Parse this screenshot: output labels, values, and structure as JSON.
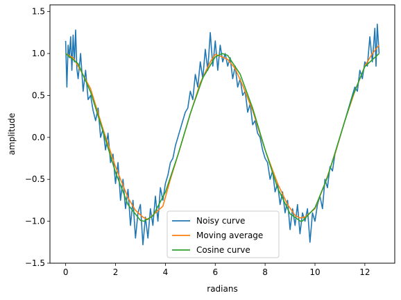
{
  "chart_data": {
    "type": "line",
    "title": "",
    "xlabel": "radians",
    "ylabel": "amplitude",
    "xlim": [
      -0.63,
      13.2
    ],
    "ylim": [
      -1.5,
      1.58
    ],
    "xticks": [
      0,
      2,
      4,
      6,
      8,
      10,
      12
    ],
    "yticks": [
      -1.5,
      -1.0,
      -0.5,
      0.0,
      0.5,
      1.0,
      1.5
    ],
    "xtick_labels": [
      "0",
      "2",
      "4",
      "6",
      "8",
      "10",
      "12"
    ],
    "ytick_labels": [
      "−1.5",
      "−1.0",
      "−0.5",
      "0.0",
      "0.5",
      "1.0",
      "1.5"
    ],
    "grid": false,
    "legend_position": "lower center",
    "series": [
      {
        "name": "Noisy curve",
        "color": "#1f77b4",
        "x": [
          0.0,
          0.05,
          0.1,
          0.15,
          0.2,
          0.25,
          0.3,
          0.35,
          0.4,
          0.45,
          0.5,
          0.6,
          0.7,
          0.8,
          0.9,
          1.0,
          1.1,
          1.2,
          1.3,
          1.4,
          1.5,
          1.6,
          1.7,
          1.8,
          1.9,
          2.0,
          2.1,
          2.2,
          2.3,
          2.4,
          2.5,
          2.6,
          2.7,
          2.8,
          2.9,
          3.0,
          3.1,
          3.2,
          3.3,
          3.4,
          3.5,
          3.6,
          3.7,
          3.8,
          3.9,
          4.0,
          4.1,
          4.2,
          4.3,
          4.4,
          4.5,
          4.6,
          4.7,
          4.8,
          4.9,
          5.0,
          5.1,
          5.2,
          5.3,
          5.4,
          5.5,
          5.6,
          5.7,
          5.8,
          5.9,
          6.0,
          6.1,
          6.2,
          6.3,
          6.4,
          6.5,
          6.6,
          6.7,
          6.8,
          6.9,
          7.0,
          7.1,
          7.2,
          7.3,
          7.4,
          7.5,
          7.6,
          7.7,
          7.8,
          7.9,
          8.0,
          8.1,
          8.2,
          8.3,
          8.4,
          8.5,
          8.6,
          8.7,
          8.8,
          8.9,
          9.0,
          9.1,
          9.2,
          9.3,
          9.4,
          9.5,
          9.6,
          9.7,
          9.8,
          9.9,
          10.0,
          10.1,
          10.2,
          10.3,
          10.4,
          10.5,
          10.6,
          10.7,
          10.8,
          10.9,
          11.0,
          11.1,
          11.2,
          11.3,
          11.4,
          11.5,
          11.6,
          11.7,
          11.8,
          11.9,
          12.0,
          12.1,
          12.2,
          12.3,
          12.4,
          12.45,
          12.5,
          12.57
        ],
        "y": [
          1.15,
          0.6,
          1.1,
          0.95,
          1.2,
          0.8,
          1.22,
          0.9,
          1.28,
          0.82,
          0.7,
          1.0,
          0.55,
          0.8,
          0.45,
          0.5,
          0.32,
          0.2,
          0.35,
          0.0,
          0.1,
          -0.15,
          0.05,
          -0.3,
          -0.2,
          -0.55,
          -0.3,
          -0.75,
          -0.5,
          -0.85,
          -0.62,
          -1.05,
          -0.75,
          -1.2,
          -0.9,
          -0.8,
          -1.28,
          -0.95,
          -1.2,
          -0.85,
          -1.05,
          -0.7,
          -1.0,
          -0.6,
          -0.75,
          -0.55,
          -0.45,
          -0.3,
          -0.25,
          -0.1,
          0.0,
          0.1,
          0.2,
          0.3,
          0.35,
          0.55,
          0.45,
          0.75,
          0.6,
          0.9,
          0.7,
          1.05,
          0.8,
          1.25,
          0.85,
          1.15,
          0.8,
          1.1,
          0.9,
          1.0,
          0.85,
          0.95,
          0.7,
          0.85,
          0.6,
          0.7,
          0.5,
          0.55,
          0.3,
          0.4,
          0.15,
          0.2,
          0.05,
          0.0,
          -0.15,
          -0.25,
          -0.3,
          -0.5,
          -0.4,
          -0.65,
          -0.55,
          -0.8,
          -0.65,
          -0.9,
          -0.75,
          -1.1,
          -0.85,
          -1.05,
          -0.8,
          -1.15,
          -0.9,
          -1.0,
          -0.85,
          -1.25,
          -0.9,
          -1.0,
          -0.8,
          -0.7,
          -0.85,
          -0.5,
          -0.6,
          -0.35,
          -0.4,
          -0.2,
          -0.1,
          0.0,
          0.1,
          0.2,
          0.3,
          0.4,
          0.5,
          0.6,
          0.55,
          0.8,
          0.7,
          0.9,
          0.85,
          1.2,
          0.9,
          1.3,
          0.85,
          1.35,
          1.0
        ],
        "values": [
          1.15,
          0.6,
          1.1,
          0.95,
          1.2,
          0.8,
          1.22,
          0.9,
          1.28,
          0.82,
          0.7,
          1.0,
          0.55,
          0.8,
          0.45,
          0.5,
          0.32,
          0.2,
          0.35,
          0.0,
          0.1,
          -0.15,
          0.05,
          -0.3,
          -0.2,
          -0.55,
          -0.3,
          -0.75,
          -0.5,
          -0.85,
          -0.62,
          -1.05,
          -0.75,
          -1.2,
          -0.9,
          -0.8,
          -1.28,
          -0.95,
          -1.2,
          -0.85,
          -1.05,
          -0.7,
          -1.0,
          -0.6,
          -0.75,
          -0.55,
          -0.45,
          -0.3,
          -0.25,
          -0.1,
          0.0,
          0.1,
          0.2,
          0.3,
          0.35,
          0.55,
          0.45,
          0.75,
          0.6,
          0.9,
          0.7,
          1.05,
          0.8,
          1.25,
          0.85,
          1.15,
          0.8,
          1.1,
          0.9,
          1.0,
          0.85,
          0.95,
          0.7,
          0.85,
          0.6,
          0.7,
          0.5,
          0.55,
          0.3,
          0.4,
          0.15,
          0.2,
          0.05,
          0.0,
          -0.15,
          -0.25,
          -0.3,
          -0.5,
          -0.4,
          -0.65,
          -0.55,
          -0.8,
          -0.65,
          -0.9,
          -0.75,
          -1.1,
          -0.85,
          -1.05,
          -0.8,
          -1.15,
          -0.9,
          -1.0,
          -0.85,
          -1.25,
          -0.9,
          -1.0,
          -0.8,
          -0.7,
          -0.85,
          -0.5,
          -0.6,
          -0.35,
          -0.4,
          -0.2,
          -0.1,
          0.0,
          0.1,
          0.2,
          0.3,
          0.4,
          0.5,
          0.6,
          0.55,
          0.8,
          0.7,
          0.9,
          0.85,
          1.2,
          0.9,
          1.3,
          0.85,
          1.35,
          1.0
        ]
      },
      {
        "name": "Moving average",
        "color": "#ff7f0e",
        "x": [
          0.0,
          0.3,
          0.6,
          1.0,
          1.5,
          2.0,
          2.5,
          2.8,
          3.1,
          3.3,
          3.6,
          3.9,
          4.2,
          4.6,
          5.0,
          5.4,
          5.8,
          6.0,
          6.2,
          6.5,
          6.8,
          7.1,
          7.5,
          8.0,
          8.5,
          8.9,
          9.2,
          9.4,
          9.6,
          9.8,
          10.0,
          10.4,
          10.8,
          11.2,
          11.6,
          12.0,
          12.3,
          12.57
        ],
        "y": [
          1.0,
          0.95,
          0.8,
          0.58,
          0.1,
          -0.35,
          -0.72,
          -0.87,
          -0.95,
          -0.98,
          -0.9,
          -0.82,
          -0.5,
          -0.12,
          0.28,
          0.65,
          0.9,
          0.99,
          0.97,
          0.93,
          0.82,
          0.62,
          0.32,
          -0.15,
          -0.55,
          -0.8,
          -0.93,
          -0.96,
          -0.95,
          -0.9,
          -0.85,
          -0.55,
          -0.2,
          0.2,
          0.55,
          0.85,
          1.0,
          1.1
        ],
        "values": [
          1.0,
          0.95,
          0.8,
          0.58,
          0.1,
          -0.35,
          -0.72,
          -0.87,
          -0.95,
          -0.98,
          -0.9,
          -0.82,
          -0.5,
          -0.12,
          0.28,
          0.65,
          0.9,
          0.99,
          0.97,
          0.93,
          0.82,
          0.62,
          0.32,
          -0.15,
          -0.55,
          -0.8,
          -0.93,
          -0.96,
          -0.95,
          -0.9,
          -0.85,
          -0.55,
          -0.2,
          0.2,
          0.55,
          0.85,
          1.0,
          1.1
        ]
      },
      {
        "name": "Cosine curve",
        "color": "#2ca02c",
        "x": [
          0.0,
          0.5,
          1.0,
          1.5,
          2.0,
          2.5,
          3.0,
          3.14,
          3.5,
          4.0,
          4.5,
          5.0,
          5.5,
          6.0,
          6.28,
          6.5,
          7.0,
          7.5,
          8.0,
          8.5,
          9.0,
          9.42,
          9.5,
          10.0,
          10.5,
          11.0,
          11.5,
          12.0,
          12.57
        ],
        "y": [
          1.0,
          0.878,
          0.54,
          0.071,
          -0.416,
          -0.801,
          -0.99,
          -1.0,
          -0.936,
          -0.654,
          -0.211,
          0.284,
          0.709,
          0.96,
          1.0,
          0.977,
          0.754,
          0.347,
          -0.146,
          -0.602,
          -0.911,
          -1.0,
          -0.997,
          -0.839,
          -0.476,
          0.004,
          0.483,
          0.844,
          1.0
        ],
        "values": [
          1.0,
          0.878,
          0.54,
          0.071,
          -0.416,
          -0.801,
          -0.99,
          -1.0,
          -0.936,
          -0.654,
          -0.211,
          0.284,
          0.709,
          0.96,
          1.0,
          0.977,
          0.754,
          0.347,
          -0.146,
          -0.602,
          -0.911,
          -1.0,
          -0.997,
          -0.839,
          -0.476,
          0.004,
          0.483,
          0.844,
          1.0
        ]
      }
    ]
  }
}
